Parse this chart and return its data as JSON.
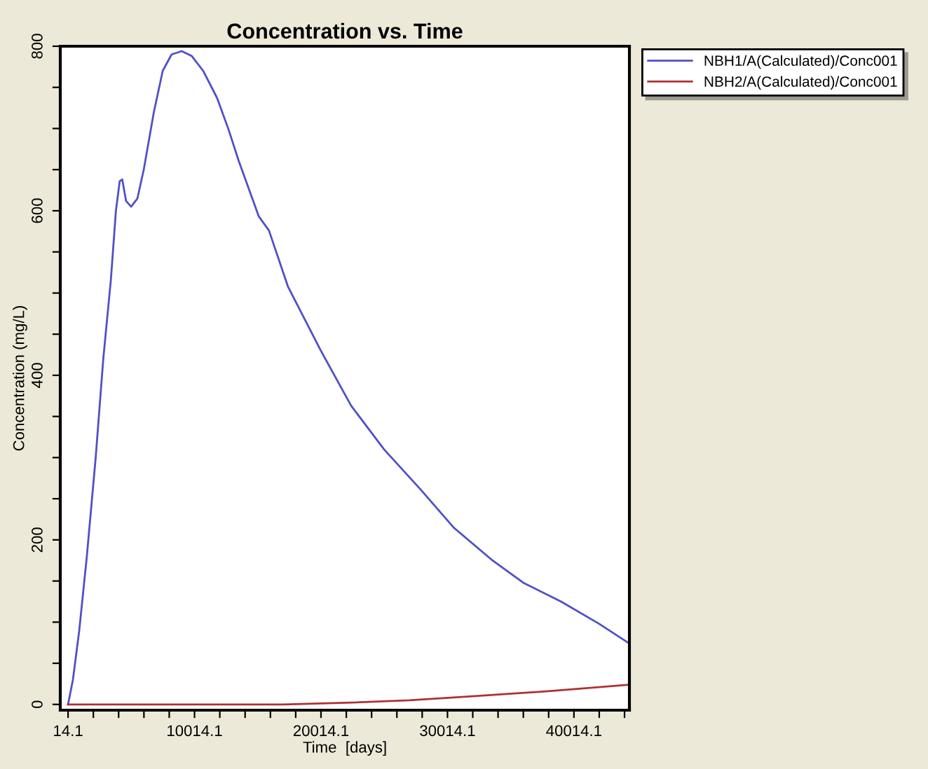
{
  "chart_data": {
    "type": "line",
    "title": "Concentration vs. Time",
    "xlabel": "Time  [days]",
    "ylabel": "Concentration (mg/L)",
    "xlim": [
      -600,
      44400
    ],
    "ylim": [
      -7,
      800
    ],
    "xticks": [
      14.1,
      {
        "value": 2014.1,
        "label": null
      },
      {
        "value": 4014.1,
        "label": null
      },
      {
        "value": 6014.1,
        "label": null
      },
      {
        "value": 8014.1,
        "label": null
      },
      10014.1,
      {
        "value": 12014.1,
        "label": null
      },
      {
        "value": 14014.1,
        "label": null
      },
      {
        "value": 16014.1,
        "label": null
      },
      {
        "value": 18014.1,
        "label": null
      },
      20014.1,
      {
        "value": 22014.1,
        "label": null
      },
      {
        "value": 24014.1,
        "label": null
      },
      {
        "value": 26014.1,
        "label": null
      },
      {
        "value": 28014.1,
        "label": null
      },
      30014.1,
      {
        "value": 32014.1,
        "label": null
      },
      {
        "value": 34014.1,
        "label": null
      },
      {
        "value": 36014.1,
        "label": null
      },
      {
        "value": 38014.1,
        "label": null
      },
      40014.1,
      {
        "value": 42014.1,
        "label": null
      },
      {
        "value": 44014.1,
        "label": null
      }
    ],
    "yticks": [
      0,
      {
        "value": 50,
        "label": null
      },
      {
        "value": 100,
        "label": null
      },
      {
        "value": 150,
        "label": null
      },
      200,
      {
        "value": 250,
        "label": null
      },
      {
        "value": 300,
        "label": null
      },
      {
        "value": 350,
        "label": null
      },
      400,
      {
        "value": 450,
        "label": null
      },
      {
        "value": 500,
        "label": null
      },
      {
        "value": 550,
        "label": null
      },
      600,
      {
        "value": 650,
        "label": null
      },
      {
        "value": 700,
        "label": null
      },
      {
        "value": 750,
        "label": null
      },
      800
    ],
    "grid": false,
    "legend": "top right",
    "marker": "none",
    "line_style": "solid",
    "series": [
      {
        "name": "NBH1/A(Calculated)/Conc001",
        "color": "#5050c8",
        "x": [
          14,
          400,
          900,
          1500,
          2200,
          2800,
          3400,
          3800,
          4100,
          4300,
          4600,
          5000,
          5500,
          6000,
          6800,
          7500,
          8200,
          9000,
          9800,
          10700,
          11800,
          12700,
          13500,
          15100,
          15900,
          17400,
          20000,
          22400,
          25000,
          27900,
          30500,
          33500,
          36000,
          39000,
          42000,
          44400
        ],
        "values": [
          0,
          30,
          90,
          180,
          300,
          420,
          516,
          600,
          636,
          638,
          612,
          605,
          615,
          650,
          720,
          770,
          790,
          794,
          788,
          770,
          737,
          699,
          661,
          593,
          576,
          508,
          430,
          363,
          310,
          261,
          215,
          176,
          148,
          125,
          98,
          74
        ]
      },
      {
        "name": "NBH2/A(Calculated)/Conc001",
        "color": "#b03030",
        "x": [
          14,
          17000,
          22000,
          27000,
          32000,
          38000,
          44400
        ],
        "values": [
          0,
          0,
          2,
          5,
          10,
          16,
          24
        ]
      }
    ]
  }
}
